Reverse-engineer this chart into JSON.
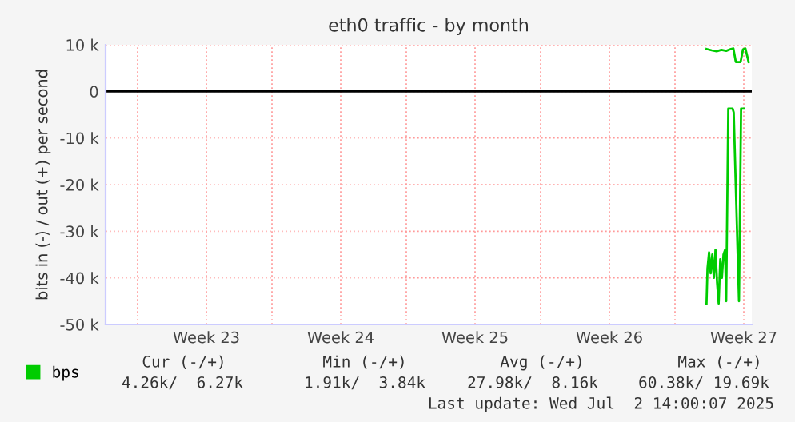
{
  "chart_data": {
    "type": "line",
    "title": "eth0 traffic - by month",
    "ylabel": "bits in (-) / out (+) per second",
    "xlim": [
      "2025-05-29T22:00",
      "2025-07-02T14:00"
    ],
    "ylim": [
      -50000,
      10000
    ],
    "xticks": [
      {
        "value": "2025-05-31T14:00",
        "label": null
      },
      {
        "value": "2025-06-04T04:00",
        "label": "Week 23"
      },
      {
        "value": "2025-06-07T14:00",
        "label": null
      },
      {
        "value": "2025-06-11T04:00",
        "label": "Week 24"
      },
      {
        "value": "2025-06-14T14:00",
        "label": null
      },
      {
        "value": "2025-06-18T04:00",
        "label": "Week 25"
      },
      {
        "value": "2025-06-21T14:00",
        "label": null
      },
      {
        "value": "2025-06-25T04:00",
        "label": "Week 26"
      },
      {
        "value": "2025-06-28T14:00",
        "label": null
      },
      {
        "value": "2025-07-02T04:00",
        "label": "Week 27"
      }
    ],
    "yticks": [
      {
        "value": 10000,
        "label": "10 k"
      },
      0,
      {
        "value": -10000,
        "label": "-10 k"
      },
      {
        "value": -20000,
        "label": "-20 k"
      },
      {
        "value": -30000,
        "label": "-30 k"
      },
      {
        "value": -40000,
        "label": "-40 k"
      },
      {
        "value": -50000,
        "label": "-50 k"
      }
    ],
    "series": [
      {
        "name": "bps",
        "color": "#00cc00",
        "x": [
          "2025-06-30T05:24",
          "2025-06-30T12:00",
          "2025-06-30T18:00",
          "2025-07-01T00:00",
          "2025-07-01T06:00",
          "2025-07-01T12:00",
          "2025-07-01T15:00",
          "2025-07-01T18:00",
          "2025-07-02T00:00",
          "2025-07-02T03:00",
          "2025-07-02T06:00",
          "2025-07-02T10:00"
        ],
        "values": [
          9100,
          8800,
          8600,
          8900,
          8700,
          9100,
          9200,
          6300,
          6300,
          9000,
          9200,
          6300
        ]
      },
      {
        "color": "#00cc00",
        "x": [
          "2025-06-30T05:24",
          "2025-06-30T06:36",
          "2025-06-30T08:36",
          "2025-06-30T10:36",
          "2025-06-30T12:36",
          "2025-06-30T14:36",
          "2025-06-30T16:36",
          "2025-06-30T18:36",
          "2025-06-30T20:36",
          "2025-06-30T22:36",
          "2025-07-01T00:36",
          "2025-07-01T02:36",
          "2025-07-01T04:36",
          "2025-07-01T06:00",
          "2025-07-01T08:36",
          "2025-07-01T14:00",
          "2025-07-01T15:24",
          "2025-07-01T22:00",
          "2025-07-02T00:36",
          "2025-07-02T04:00"
        ],
        "values": [
          -45500,
          -38000,
          -34500,
          -39000,
          -35000,
          -40000,
          -34000,
          -41000,
          -45500,
          -36000,
          -40000,
          -35000,
          -34000,
          -45000,
          -3700,
          -3700,
          -4500,
          -45000,
          -3700,
          -3700
        ]
      }
    ],
    "ref_lines": [
      {
        "axis": "y",
        "value": 0,
        "color": "#000000"
      }
    ],
    "grid": true,
    "legend": "bottom left",
    "line_style": "solid",
    "marker": "none",
    "annotations": [
      "Cur (-/+)",
      "Min (-/+)",
      "Avg (-/+)",
      "Max (-/+)",
      "4.26k/  6.27k",
      "1.91k/  3.84k",
      "27.98k/  8.16k",
      "60.38k/ 19.69k",
      "Last update: Wed Jul  2 14:00:07 2025"
    ]
  }
}
